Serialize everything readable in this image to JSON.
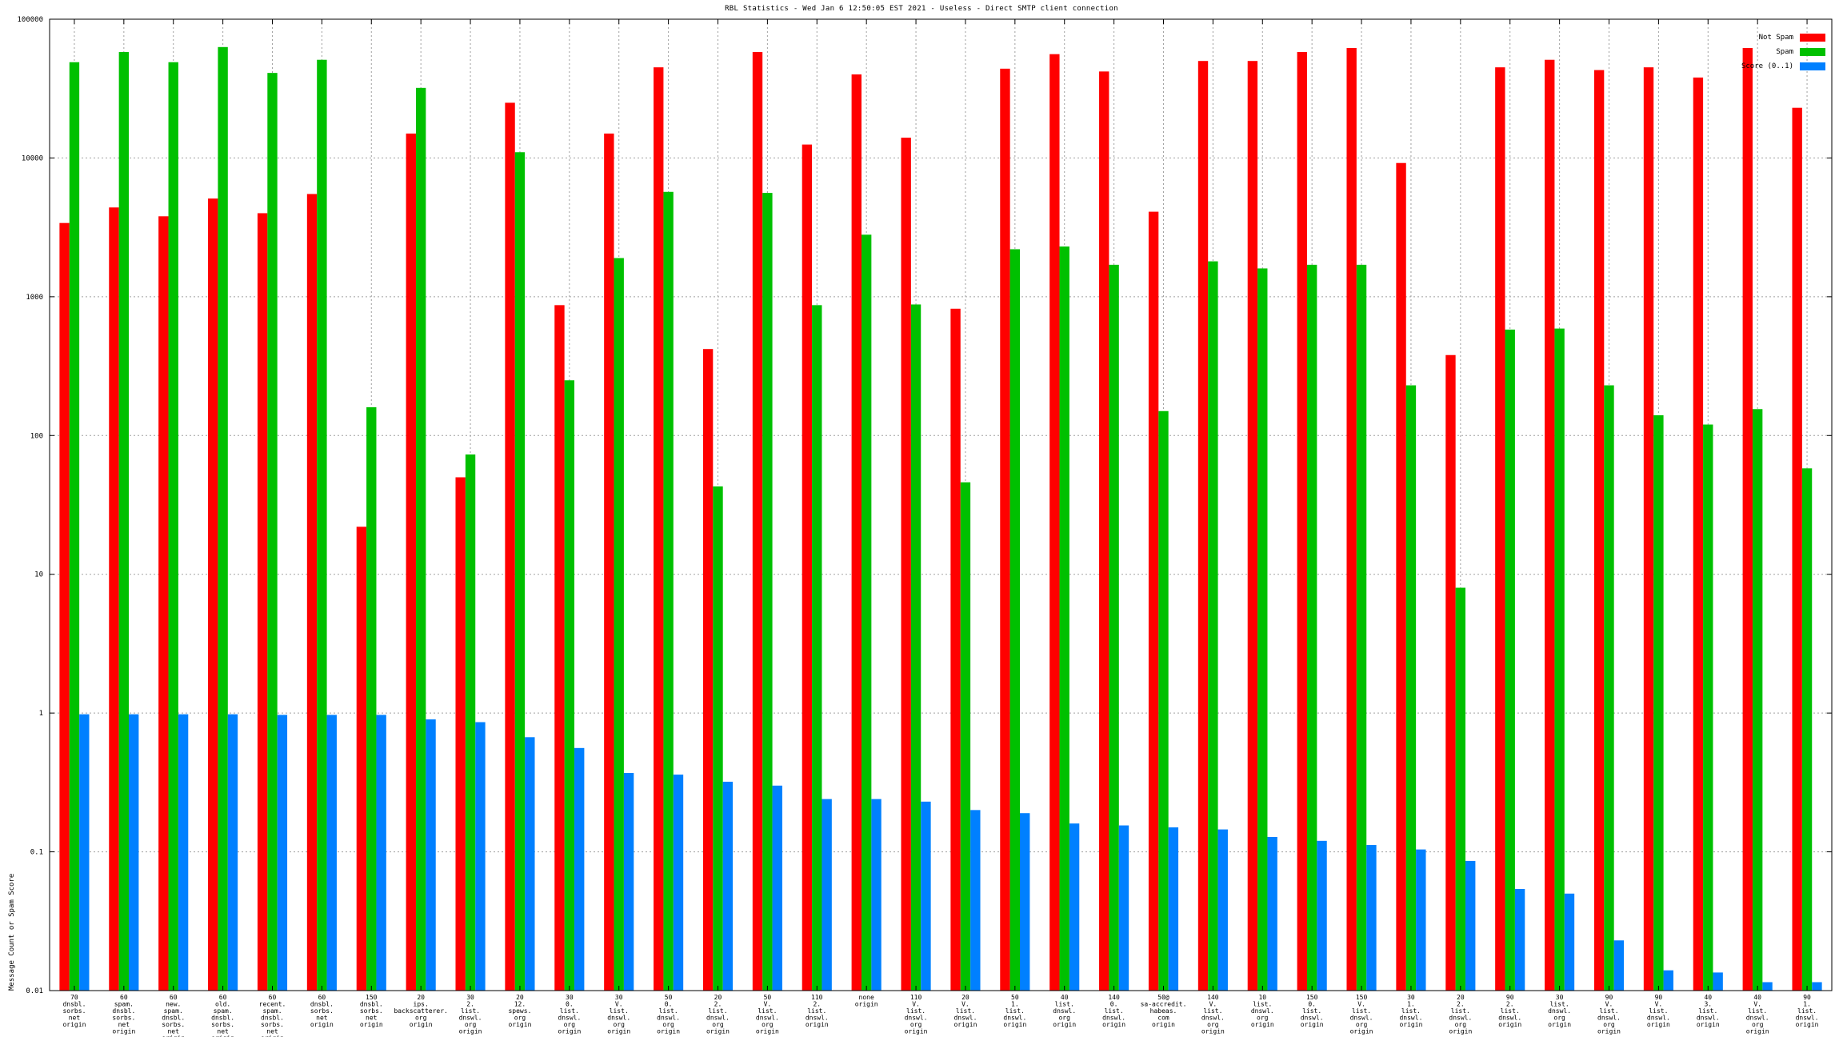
{
  "chart_data": {
    "type": "bar",
    "title": "RBL Statistics - Wed Jan  6 12:50:05 EST 2021 - Useless - Direct SMTP client connection",
    "xlabel": "",
    "ylabel": "Message Count or Spam Score",
    "yscale": "log",
    "ylim": [
      0.01,
      100000
    ],
    "yticks": [
      "0.01",
      "0.1",
      "1",
      "10",
      "100",
      "1000",
      "10000",
      "100000"
    ],
    "grid": true,
    "legend_position": "top-right",
    "categories": [
      [
        "70",
        "dnsbl.",
        "sorbs.",
        "net",
        "origin"
      ],
      [
        "60",
        "spam.",
        "dnsbl.",
        "sorbs.",
        "net",
        "origin"
      ],
      [
        "60",
        "new.",
        "spam.",
        "dnsbl.",
        "sorbs.",
        "net",
        "origin"
      ],
      [
        "60",
        "old.",
        "spam.",
        "dnsbl.",
        "sorbs.",
        "net",
        "origin"
      ],
      [
        "60",
        "recent.",
        "spam.",
        "dnsbl.",
        "sorbs.",
        "net",
        "origin"
      ],
      [
        "60",
        "dnsbl.",
        "sorbs.",
        "net",
        "origin"
      ],
      [
        "150",
        "dnsbl.",
        "sorbs.",
        "net",
        "origin"
      ],
      [
        "20",
        "ips.",
        "backscatterer.",
        "org",
        "origin"
      ],
      [
        "30",
        "2.",
        "list.",
        "dnswl.",
        "org",
        "origin"
      ],
      [
        "20",
        "12.",
        "spews.",
        "org",
        "origin"
      ],
      [
        "30",
        "0.",
        "list.",
        "dnswl.",
        "org",
        "origin"
      ],
      [
        "30",
        "V.",
        "list.",
        "dnswl.",
        "org",
        "origin"
      ],
      [
        "50",
        "0.",
        "list.",
        "dnswl.",
        "org",
        "origin"
      ],
      [
        "20",
        "2.",
        "list.",
        "dnswl.",
        "org",
        "origin"
      ],
      [
        "50",
        "V.",
        "list.",
        "dnswl.",
        "org",
        "origin"
      ],
      [
        "110",
        "2.",
        "list.",
        "dnswl.",
        "origin"
      ],
      [
        "none",
        "origin"
      ],
      [
        "110",
        "V.",
        "list.",
        "dnswl.",
        "org",
        "origin"
      ],
      [
        "20",
        "V.",
        "list.",
        "dnswl.",
        "origin"
      ],
      [
        "50",
        "1.",
        "list.",
        "dnswl.",
        "origin"
      ],
      [
        "40",
        "list.",
        "dnswl.",
        "org",
        "origin"
      ],
      [
        "140",
        "0.",
        "list.",
        "dnswl.",
        "origin"
      ],
      [
        "50@",
        "sa-accredit.",
        "habeas.",
        "com",
        "origin"
      ],
      [
        "140",
        "V.",
        "list.",
        "dnswl.",
        "org",
        "origin"
      ],
      [
        "10",
        "list.",
        "dnswl.",
        "org",
        "origin"
      ],
      [
        "150",
        "0.",
        "list.",
        "dnswl.",
        "origin"
      ],
      [
        "150",
        "V.",
        "list.",
        "dnswl.",
        "org",
        "origin"
      ],
      [
        "30",
        "1.",
        "list.",
        "dnswl.",
        "origin"
      ],
      [
        "20",
        "2.",
        "list.",
        "dnswl.",
        "org",
        "origin"
      ],
      [
        "90",
        "2.",
        "list.",
        "dnswl.",
        "origin"
      ],
      [
        "30",
        "list.",
        "dnswl.",
        "org",
        "origin"
      ],
      [
        "90",
        "V.",
        "list.",
        "dnswl.",
        "org",
        "origin"
      ],
      [
        "90",
        "V.",
        "list.",
        "dnswl.",
        "origin"
      ],
      [
        "40",
        "3.",
        "list.",
        "dnswl.",
        "origin"
      ],
      [
        "40",
        "V.",
        "list.",
        "dnswl.",
        "org",
        "origin"
      ],
      [
        "90",
        "1.",
        "list.",
        "dnswl.",
        "origin"
      ]
    ],
    "series": [
      {
        "name": "Not Spam",
        "color": "#ff0000",
        "values": [
          3400,
          4400,
          3800,
          5100,
          4000,
          5500,
          22,
          15000,
          50,
          25000,
          870,
          15000,
          45000,
          420,
          58000,
          12500,
          40000,
          14000,
          820,
          44000,
          56000,
          42000,
          4100,
          50000,
          50000,
          58000,
          62000,
          9200,
          380,
          45000,
          51000,
          43000,
          45000,
          38000,
          62000,
          23000
        ]
      },
      {
        "name": "Spam",
        "color": "#00c000",
        "values": [
          49000,
          58000,
          49000,
          63000,
          41000,
          51000,
          160,
          32000,
          73,
          11000,
          250,
          1900,
          5700,
          43,
          5600,
          870,
          2800,
          880,
          46,
          2200,
          2300,
          1700,
          150,
          1800,
          1600,
          1700,
          1700,
          230,
          8,
          580,
          590,
          230,
          140,
          120,
          155,
          58
        ]
      },
      {
        "name": "Score (0..1)",
        "color": "#0080ff",
        "values": [
          0.98,
          0.98,
          0.98,
          0.98,
          0.97,
          0.97,
          0.97,
          0.9,
          0.86,
          0.67,
          0.56,
          0.37,
          0.36,
          0.32,
          0.3,
          0.24,
          0.24,
          0.23,
          0.2,
          0.19,
          0.16,
          0.155,
          0.15,
          0.145,
          0.128,
          0.12,
          0.112,
          0.104,
          0.086,
          0.054,
          0.05,
          0.023,
          0.014,
          0.0135,
          0.0115,
          0.0115
        ]
      }
    ]
  }
}
